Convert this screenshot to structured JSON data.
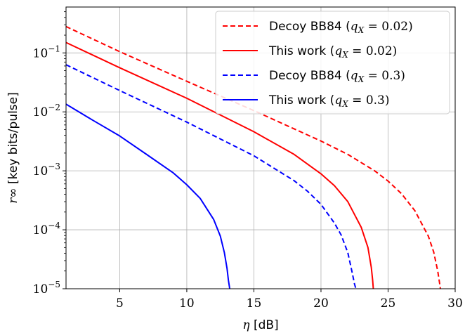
{
  "chart_data": {
    "type": "line",
    "xlabel_symbol": "η",
    "xlabel_unit": "[dB]",
    "ylabel_symbol": "r∞",
    "ylabel_unit": "[key bits/pulse]",
    "xlim": [
      1,
      30
    ],
    "ylim": [
      1e-05,
      0.6
    ],
    "yscale": "log",
    "grid": true,
    "legend_position": "top-right",
    "x_ticks": [
      5,
      10,
      15,
      20,
      25,
      30
    ],
    "x_tick_labels": [
      "5",
      "10",
      "15",
      "20",
      "25",
      "30"
    ],
    "y_ticks": [
      1e-05,
      0.0001,
      0.001,
      0.01,
      0.1
    ],
    "y_tick_labels": [
      {
        "base": "10",
        "exp": "−5"
      },
      {
        "base": "10",
        "exp": "−4"
      },
      {
        "base": "10",
        "exp": "−3"
      },
      {
        "base": "10",
        "exp": "−2"
      },
      {
        "base": "10",
        "exp": "−1"
      }
    ],
    "series": [
      {
        "name": "Decoy BB84 (qX = 0.02)",
        "legend_prefix": "Decoy BB84 (",
        "legend_var": "q",
        "legend_sub": "X",
        "legend_value": " = 0.02)",
        "color": "#ff0000",
        "dash": "dashed",
        "x": [
          1,
          5,
          10,
          15,
          20,
          22,
          24,
          25,
          26,
          27,
          28,
          28.4,
          28.7,
          28.85,
          28.9
        ],
        "y": [
          0.28,
          0.105,
          0.033,
          0.0105,
          0.0032,
          0.0019,
          0.001,
          0.00067,
          0.00041,
          0.00021,
          7.8e-05,
          4.2e-05,
          2e-05,
          1.2e-05,
          1e-05
        ]
      },
      {
        "name": "This work (qX = 0.02)",
        "legend_prefix": "This work (",
        "legend_var": "q",
        "legend_sub": "X",
        "legend_value": " = 0.02)",
        "color": "#ff0000",
        "dash": "solid",
        "x": [
          1,
          5,
          10,
          15,
          18,
          20,
          21,
          22,
          23,
          23.5,
          23.75,
          23.85,
          23.9
        ],
        "y": [
          0.15,
          0.056,
          0.017,
          0.0046,
          0.0019,
          0.00089,
          0.00056,
          0.0003,
          0.00011,
          5e-05,
          2.3e-05,
          1.4e-05,
          1e-05
        ]
      },
      {
        "name": "Decoy BB84 (qX = 0.3)",
        "legend_prefix": "Decoy BB84 (",
        "legend_var": "q",
        "legend_sub": "X",
        "legend_value": " = 0.3)",
        "color": "#0000ff",
        "dash": "dashed",
        "x": [
          1,
          5,
          10,
          15,
          18,
          19,
          20,
          21,
          21.5,
          22,
          22.3,
          22.5,
          22.6
        ],
        "y": [
          0.063,
          0.023,
          0.0067,
          0.0018,
          0.00068,
          0.00045,
          0.00027,
          0.00013,
          8.2e-05,
          4.1e-05,
          2e-05,
          1.2e-05,
          1e-05
        ]
      },
      {
        "name": "This work (qX = 0.3)",
        "legend_prefix": "This work (",
        "legend_var": "q",
        "legend_sub": "X",
        "legend_value": " = 0.3)",
        "color": "#0000ff",
        "dash": "solid",
        "x": [
          1,
          3,
          5,
          7,
          9,
          10,
          11,
          12,
          12.5,
          12.8,
          13.0,
          13.1,
          13.2
        ],
        "y": [
          0.0135,
          0.0072,
          0.0039,
          0.0019,
          0.00092,
          0.00058,
          0.00034,
          0.00015,
          7.8e-05,
          4.1e-05,
          2.2e-05,
          1.4e-05,
          1e-05
        ]
      }
    ]
  }
}
